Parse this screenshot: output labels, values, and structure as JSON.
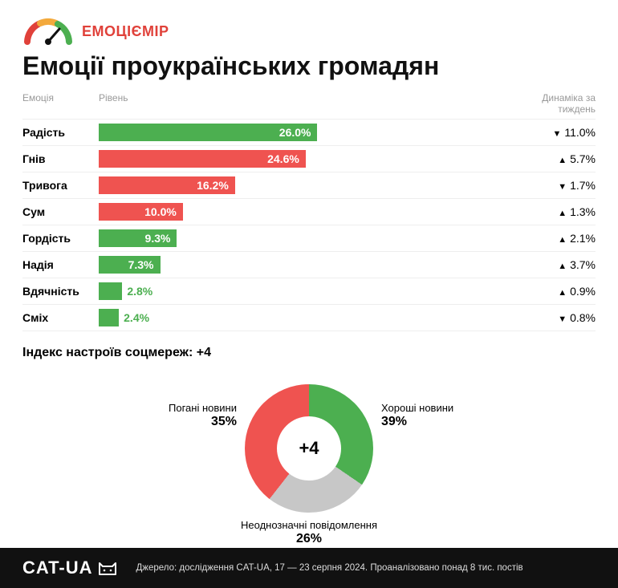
{
  "brand": {
    "gauge_colors": [
      "#e0413a",
      "#f3a93c",
      "#4caf50"
    ],
    "label": "ЕМОЦІЄМІР"
  },
  "title": "Емоції проукраїнських громадян",
  "columns": {
    "emotion": "Емоція",
    "level": "Рівень",
    "dynamics": "Динаміка\nза тиждень"
  },
  "bar_chart": {
    "max_percent": 50,
    "colors": {
      "green": "#4caf50",
      "red": "#ef5350",
      "text_inside": "#ffffff",
      "text_outside": "#111111"
    },
    "rows": [
      {
        "label": "Радість",
        "value": 26.0,
        "value_str": "26.0%",
        "color": "green",
        "dyn_dir": "down",
        "dyn_str": "11.0%"
      },
      {
        "label": "Гнів",
        "value": 24.6,
        "value_str": "24.6%",
        "color": "red",
        "dyn_dir": "up",
        "dyn_str": "5.7%"
      },
      {
        "label": "Тривога",
        "value": 16.2,
        "value_str": "16.2%",
        "color": "red",
        "dyn_dir": "down",
        "dyn_str": "1.7%"
      },
      {
        "label": "Сум",
        "value": 10.0,
        "value_str": "10.0%",
        "color": "red",
        "dyn_dir": "up",
        "dyn_str": "1.3%"
      },
      {
        "label": "Гордість",
        "value": 9.3,
        "value_str": "9.3%",
        "color": "green",
        "dyn_dir": "up",
        "dyn_str": "2.1%"
      },
      {
        "label": "Надія",
        "value": 7.3,
        "value_str": "7.3%",
        "color": "green",
        "dyn_dir": "up",
        "dyn_str": "3.7%"
      },
      {
        "label": "Вдячність",
        "value": 2.8,
        "value_str": "2.8%",
        "color": "green",
        "dyn_dir": "up",
        "dyn_str": "0.9%"
      },
      {
        "label": "Сміх",
        "value": 2.4,
        "value_str": "2.4%",
        "color": "green",
        "dyn_dir": "down",
        "dyn_str": "0.8%"
      }
    ]
  },
  "index_title": "Індекс настроїв соцмереж: +4",
  "donut": {
    "center_value": "+4",
    "slices": {
      "good": {
        "label": "Хороші новини",
        "value": 39,
        "value_str": "39%",
        "color": "#4caf50"
      },
      "bad": {
        "label": "Погані новини",
        "value": 35,
        "value_str": "35%",
        "color": "#ef5350"
      },
      "amb": {
        "label": "Неоднозначні повідомлення",
        "value": 26,
        "value_str": "26%",
        "color": "#c7c7c7"
      }
    },
    "start_angle_deg": -16
  },
  "footer": {
    "logo_text": "CAT-UA",
    "source": "Джерело: дослідження CAT-UA, 17 — 23 серпня 2024. Проаналізовано понад 8 тис. постів"
  }
}
